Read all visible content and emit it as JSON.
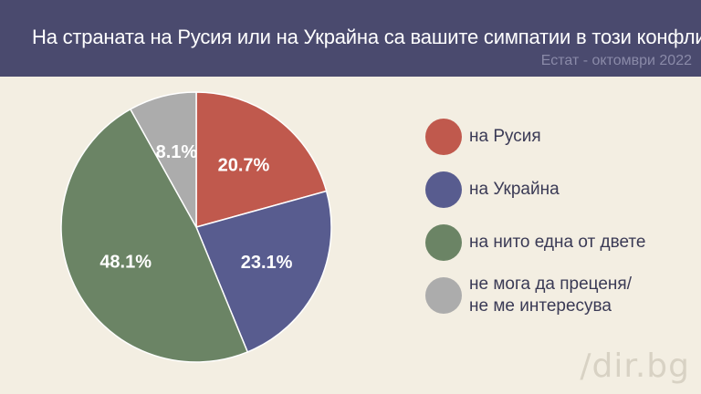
{
  "header": {
    "title": "На страната на Русия или на Украйна са вашите симпатии в този конфликт?",
    "subtitle": "Естат - октомври 2022"
  },
  "chart_data": {
    "type": "pie",
    "slices": [
      {
        "label": "на Русия",
        "value": 20.7,
        "value_label": "20.7%",
        "color": "#c0594d"
      },
      {
        "label": "на Украйна",
        "value": 23.1,
        "value_label": "23.1%",
        "color": "#585c8f"
      },
      {
        "label": "на нито една от двете",
        "value": 48.1,
        "value_label": "48.1%",
        "color": "#6b8465"
      },
      {
        "label": "не мога да преценя/\nне ме интересува",
        "value": 8.1,
        "value_label": "8.1%",
        "color": "#acacac"
      }
    ],
    "legend_position": "right"
  },
  "watermark": "/dir.bg"
}
